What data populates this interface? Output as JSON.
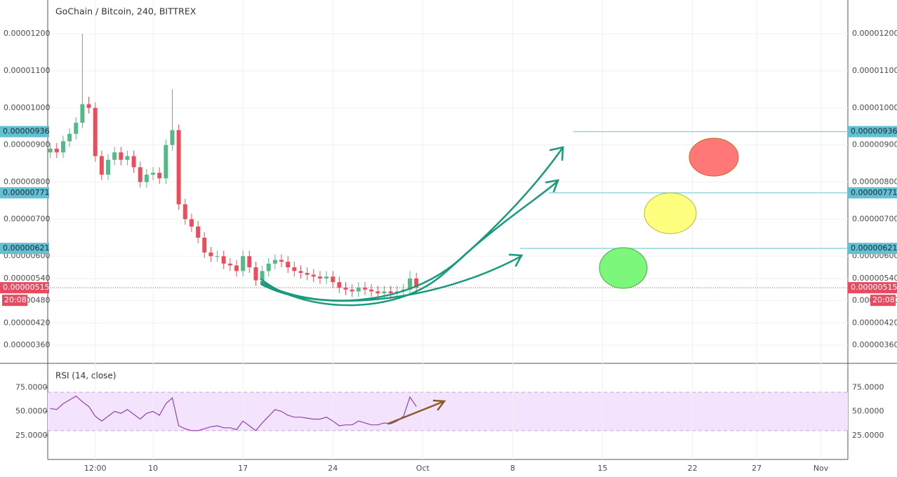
{
  "chart_data": [
    {
      "type": "candlestick",
      "title": "GoChain / Bitcoin, 240, BITTREX",
      "x": [
        1,
        1.5,
        2,
        2.5,
        3,
        3.5,
        4,
        4.5,
        5,
        5.5,
        6,
        6.5,
        7,
        7.5,
        8,
        8.5,
        9,
        9.5,
        10,
        10.5,
        11,
        11.5,
        12,
        12.5,
        13,
        13.5,
        14,
        14.5,
        15,
        15.5,
        16,
        16.5,
        17,
        17.5,
        18,
        18.5,
        19,
        19.5,
        20,
        20.5,
        21,
        21.5,
        22,
        22.5,
        23,
        23.5,
        24,
        24.5,
        25,
        25.5,
        26,
        26.5,
        27,
        27.5,
        28,
        28.5,
        29,
        29.5
      ],
      "open": [
        8.8e-06,
        8.9e-06,
        8.8e-06,
        9.1e-06,
        9.3e-06,
        9.6e-06,
        1.01e-05,
        1e-05,
        8.7e-06,
        8.2e-06,
        8.6e-06,
        8.8e-06,
        8.6e-06,
        8.7e-06,
        8.4e-06,
        8e-06,
        8.2e-06,
        8.25e-06,
        8.1e-06,
        9e-06,
        9.4e-06,
        7.4e-06,
        7e-06,
        6.8e-06,
        6.5e-06,
        6.1e-06,
        6e-06,
        6e-06,
        5.8e-06,
        5.75e-06,
        5.6e-06,
        6e-06,
        5.7e-06,
        5.35e-06,
        5.6e-06,
        5.8e-06,
        5.9e-06,
        5.85e-06,
        5.7e-06,
        5.6e-06,
        5.55e-06,
        5.5e-06,
        5.45e-06,
        5.4e-06,
        5.45e-06,
        5.3e-06,
        5.15e-06,
        5.1e-06,
        5.05e-06,
        5.15e-06,
        5.1e-06,
        5.05e-06,
        5e-06,
        5.05e-06,
        5e-06,
        5.05e-06,
        5.1e-06,
        5.4e-06
      ],
      "high": [
        9.05e-06,
        9.05e-06,
        9.25e-06,
        9.45e-06,
        9.75e-06,
        1.2e-05,
        1.03e-05,
        1.015e-05,
        8.85e-06,
        8.75e-06,
        8.95e-06,
        8.95e-06,
        8.85e-06,
        8.85e-06,
        8.55e-06,
        8.35e-06,
        8.4e-06,
        8.4e-06,
        9.15e-06,
        1.05e-05,
        9.55e-06,
        7.55e-06,
        7.15e-06,
        6.95e-06,
        6.65e-06,
        6.25e-06,
        6.15e-06,
        6.15e-06,
        5.95e-06,
        5.9e-06,
        6.15e-06,
        6.15e-06,
        5.85e-06,
        5.75e-06,
        5.95e-06,
        6.05e-06,
        6.05e-06,
        6e-06,
        5.85e-06,
        5.75e-06,
        5.7e-06,
        5.65e-06,
        5.6e-06,
        5.6e-06,
        5.6e-06,
        5.45e-06,
        5.3e-06,
        5.25e-06,
        5.3e-06,
        5.3e-06,
        5.25e-06,
        5.2e-06,
        5.2e-06,
        5.2e-06,
        5.2e-06,
        5.25e-06,
        5.6e-06,
        5.55e-06
      ],
      "low": [
        8.65e-06,
        8.65e-06,
        8.65e-06,
        8.95e-06,
        9.15e-06,
        9.45e-06,
        9.85e-06,
        8.55e-06,
        8.05e-06,
        8.05e-06,
        8.45e-06,
        8.45e-06,
        8.45e-06,
        8.25e-06,
        7.85e-06,
        7.85e-06,
        8.05e-06,
        7.95e-06,
        7.95e-06,
        8.85e-06,
        7.25e-06,
        6.85e-06,
        6.65e-06,
        6.35e-06,
        5.95e-06,
        5.85e-06,
        5.85e-06,
        5.65e-06,
        5.6e-06,
        5.45e-06,
        5.45e-06,
        5.55e-06,
        5.2e-06,
        5.2e-06,
        5.45e-06,
        5.65e-06,
        5.7e-06,
        5.55e-06,
        5.45e-06,
        5.4e-06,
        5.35e-06,
        5.3e-06,
        5.25e-06,
        5.25e-06,
        5.15e-06,
        5e-06,
        4.95e-06,
        4.9e-06,
        4.9e-06,
        4.95e-06,
        4.9e-06,
        4.85e-06,
        4.85e-06,
        4.85e-06,
        4.85e-06,
        4.9e-06,
        4.95e-06,
        5e-06
      ],
      "close": [
        8.9e-06,
        8.8e-06,
        9.1e-06,
        9.3e-06,
        9.6e-06,
        1.01e-05,
        1e-05,
        8.7e-06,
        8.2e-06,
        8.6e-06,
        8.8e-06,
        8.6e-06,
        8.7e-06,
        8.4e-06,
        8e-06,
        8.2e-06,
        8.25e-06,
        8.1e-06,
        9e-06,
        9.4e-06,
        7.4e-06,
        7e-06,
        6.8e-06,
        6.5e-06,
        6.1e-06,
        6e-06,
        6e-06,
        5.8e-06,
        5.75e-06,
        5.6e-06,
        6e-06,
        5.7e-06,
        5.35e-06,
        5.6e-06,
        5.8e-06,
        5.9e-06,
        5.85e-06,
        5.7e-06,
        5.6e-06,
        5.55e-06,
        5.5e-06,
        5.45e-06,
        5.4e-06,
        5.45e-06,
        5.3e-06,
        5.15e-06,
        5.1e-06,
        5.05e-06,
        5.15e-06,
        5.1e-06,
        5.05e-06,
        5e-06,
        5.05e-06,
        5e-06,
        5.05e-06,
        5.1e-06,
        5.4e-06,
        5.15e-06
      ],
      "up_color": "#53b987",
      "down_color": "#eb4d5c",
      "xlim": [
        0.8,
        63.1
      ],
      "ylim": [
        3.11e-06,
        1.291e-05
      ],
      "yticks": [
        {
          "value": 1.2e-05,
          "label": "0.00001200"
        },
        {
          "value": 1.1e-05,
          "label": "0.00001100"
        },
        {
          "value": 1e-05,
          "label": "0.00001000"
        },
        {
          "value": 9e-06,
          "label": "0.00000900"
        },
        {
          "value": 8e-06,
          "label": "0.00000800"
        },
        {
          "value": 7e-06,
          "label": "0.00000700"
        },
        {
          "value": 6e-06,
          "label": "0.00000600"
        },
        {
          "value": 5.4e-06,
          "label": "0.00000540"
        },
        {
          "value": 4.8e-06,
          "label": "0.00000480"
        },
        {
          "value": 4.2e-06,
          "label": "0.00000420"
        },
        {
          "value": 3.6e-06,
          "label": "0.00000360"
        }
      ],
      "grid": true,
      "level_color": "#7ecfd9",
      "level_box_color": "#63c0d2",
      "levels": [
        {
          "value": 9.36e-06,
          "label": "0.00000936"
        },
        {
          "value": 7.71e-06,
          "label": "0.00000771"
        },
        {
          "value": 6.21e-06,
          "label": "0.00000621"
        }
      ],
      "last_price": {
        "value": 5.15e-06,
        "label": "0.00000515",
        "countdown": "20:08",
        "color": "#e84a5f"
      }
    },
    {
      "type": "line",
      "title": "RSI (14, close)",
      "x": [
        1,
        1.5,
        2,
        2.5,
        3,
        3.5,
        4,
        4.5,
        5,
        5.5,
        6,
        6.5,
        7,
        7.5,
        8,
        8.5,
        9,
        9.5,
        10,
        10.5,
        11,
        11.5,
        12,
        12.5,
        13,
        13.5,
        14,
        14.5,
        15,
        15.5,
        16,
        16.5,
        17,
        17.5,
        18,
        18.5,
        19,
        19.5,
        20,
        20.5,
        21,
        21.5,
        22,
        22.5,
        23,
        23.5,
        24,
        24.5,
        25,
        25.5,
        26,
        26.5,
        27,
        27.5,
        28,
        28.5,
        29,
        29.5
      ],
      "values": [
        53,
        52,
        58,
        62,
        66,
        60,
        55,
        45,
        40,
        45,
        50,
        48,
        52,
        47,
        42,
        48,
        50,
        46,
        58,
        64,
        35,
        32,
        30,
        30,
        32,
        34,
        35,
        33,
        33,
        31,
        40,
        35,
        30,
        38,
        45,
        52,
        50,
        46,
        44,
        44,
        43,
        42,
        42,
        44,
        40,
        35,
        36,
        36,
        40,
        38,
        36,
        36,
        38,
        37,
        40,
        45,
        65,
        55
      ],
      "color": "#8e44ad",
      "band": [
        30,
        70
      ],
      "band_color": "#f3e3fd",
      "band_line_color": "#c9a0dc",
      "xlim": [
        0.8,
        63.1
      ],
      "ylim": [
        0,
        100
      ],
      "yticks": [
        {
          "value": 75,
          "label": "75.0000"
        },
        {
          "value": 50,
          "label": "50.0000"
        },
        {
          "value": 25,
          "label": "25.0000"
        }
      ],
      "xticks": [
        {
          "value": 4.5,
          "label": "12:00"
        },
        {
          "value": 9,
          "label": "10"
        },
        {
          "value": 16,
          "label": "17"
        },
        {
          "value": 23,
          "label": "24"
        },
        {
          "value": 30,
          "label": "Oct"
        },
        {
          "value": 37,
          "label": "8"
        },
        {
          "value": 44,
          "label": "15"
        },
        {
          "value": 51,
          "label": "22"
        },
        {
          "value": 56,
          "label": "27"
        },
        {
          "value": 61,
          "label": "Nov"
        }
      ]
    }
  ]
}
